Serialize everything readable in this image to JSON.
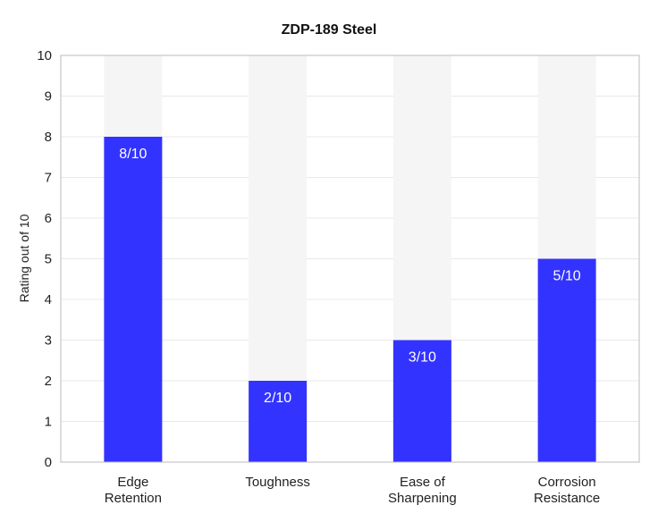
{
  "chart_data": {
    "type": "bar",
    "title": "ZDP-189 Steel",
    "xlabel": "",
    "ylabel": "Rating out of 10",
    "ylim": [
      0,
      10
    ],
    "yticks": [
      "0",
      "1",
      "2",
      "3",
      "4",
      "5",
      "6",
      "7",
      "8",
      "9",
      "10"
    ],
    "grid": true,
    "categories": [
      [
        "Edge",
        "Retention"
      ],
      [
        "Toughness"
      ],
      [
        "Ease of",
        "Sharpening"
      ],
      [
        "Corrosion",
        "Resistance"
      ]
    ],
    "values": [
      8,
      2,
      3,
      5
    ],
    "bar_labels": [
      "8/10",
      "2/10",
      "3/10",
      "5/10"
    ],
    "max_value": 10,
    "colors": {
      "bar": "#3333ff",
      "track": "#f5f5f5",
      "grid": "#e8e8e8",
      "axis": "#bbbbbb"
    }
  }
}
